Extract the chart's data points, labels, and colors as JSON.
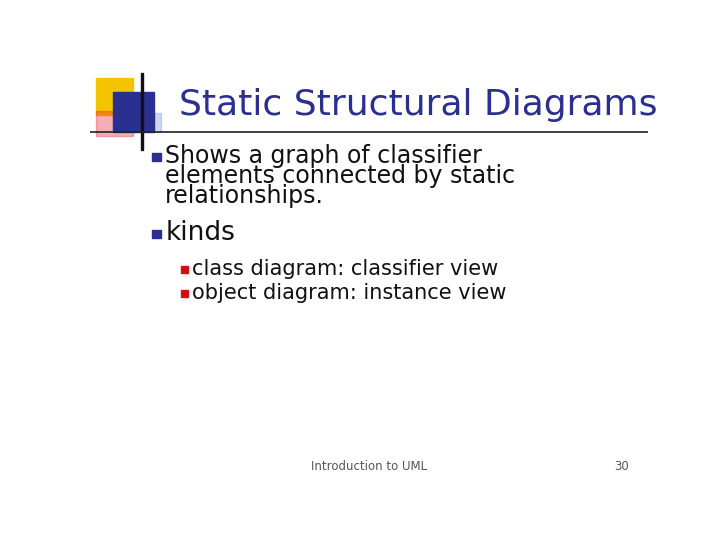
{
  "title": "Static Structural Diagrams",
  "title_color": "#2B2F8F",
  "title_fontsize": 26,
  "bg_color": "#FFFFFF",
  "separator_color": "#222222",
  "bullet1_text_lines": [
    "Shows a graph of classifier",
    "elements connected by static",
    "relationships."
  ],
  "bullet2_text": "kinds",
  "sub_bullet1": "class diagram: classifier view",
  "sub_bullet2": "object diagram: instance view",
  "bullet_color": "#2B2F8F",
  "sub_bullet_color": "#CC1111",
  "text_color": "#111111",
  "footer_text": "Introduction to UML",
  "page_number": "30",
  "footer_color": "#555555",
  "logo_yellow": "#F5C400",
  "logo_blue": "#2B2F8F",
  "logo_red": "#E8182C",
  "logo_blue_light": "#8899DD"
}
